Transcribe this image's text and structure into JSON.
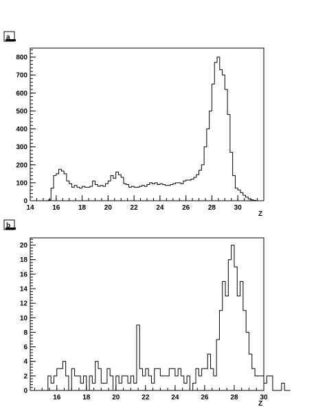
{
  "chart_data": [
    {
      "panel_label": "a",
      "type": "histogram",
      "xlabel": "Z",
      "ylabel": "",
      "xlim": [
        14,
        32
      ],
      "ylim": [
        0,
        850
      ],
      "xticks": [
        14,
        16,
        18,
        20,
        22,
        24,
        26,
        28,
        30
      ],
      "yticks": [
        0,
        100,
        200,
        300,
        400,
        500,
        600,
        700,
        800
      ],
      "bin_start": 15.0,
      "bin_width": 0.2,
      "values": [
        0,
        0,
        5,
        70,
        140,
        150,
        175,
        165,
        150,
        110,
        95,
        75,
        85,
        75,
        70,
        80,
        75,
        75,
        80,
        110,
        90,
        80,
        85,
        80,
        95,
        110,
        140,
        125,
        160,
        145,
        130,
        95,
        90,
        75,
        80,
        75,
        75,
        80,
        85,
        80,
        90,
        100,
        95,
        100,
        90,
        95,
        90,
        85,
        85,
        90,
        95,
        100,
        100,
        95,
        110,
        115,
        115,
        120,
        130,
        145,
        170,
        200,
        300,
        400,
        500,
        650,
        770,
        800,
        730,
        700,
        620,
        480,
        270,
        140,
        70,
        60,
        45,
        30,
        20,
        10,
        5,
        2,
        0,
        0
      ]
    },
    {
      "panel_label": "b",
      "type": "histogram",
      "xlabel": "Z",
      "ylabel": "",
      "xlim": [
        14.2,
        30
      ],
      "ylim": [
        0,
        21
      ],
      "xticks": [
        16,
        18,
        20,
        22,
        24,
        26,
        28,
        30
      ],
      "yticks": [
        0,
        2,
        4,
        6,
        8,
        10,
        12,
        14,
        16,
        18,
        20
      ],
      "bin_start": 15.0,
      "bin_width": 0.2,
      "values": [
        0,
        0,
        2,
        1,
        2,
        3,
        3,
        4,
        2,
        0,
        3,
        2,
        2,
        1,
        2,
        0,
        2,
        1,
        4,
        3,
        1,
        1,
        3,
        2,
        0,
        2,
        1,
        2,
        2,
        1,
        2,
        1,
        9,
        3,
        2,
        3,
        2,
        1,
        3,
        3,
        2,
        2,
        2,
        3,
        3,
        2,
        3,
        2,
        1,
        2,
        0,
        1,
        3,
        2,
        3,
        3,
        5,
        3,
        2,
        7,
        11,
        15,
        13,
        18,
        20,
        17,
        13,
        15,
        11,
        8,
        5,
        3,
        2,
        2,
        2,
        1,
        2,
        2,
        0,
        0,
        0,
        1,
        0,
        0
      ]
    }
  ]
}
